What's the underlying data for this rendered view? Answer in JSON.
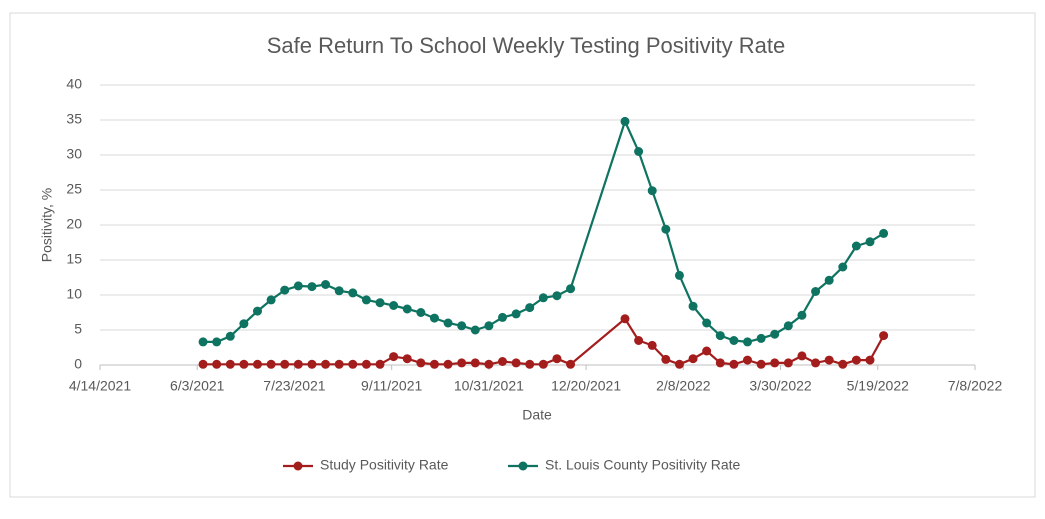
{
  "chart_data": {
    "type": "line",
    "title": "Safe Return To School Weekly Testing Positivity Rate",
    "xlabel": "Date",
    "ylabel": "Positivity, %",
    "x": [
      "6/6/2021",
      "6/13/2021",
      "6/20/2021",
      "6/27/2021",
      "7/4/2021",
      "7/11/2021",
      "7/18/2021",
      "7/25/2021",
      "8/1/2021",
      "8/8/2021",
      "8/15/2021",
      "8/22/2021",
      "8/29/2021",
      "9/5/2021",
      "9/12/2021",
      "9/19/2021",
      "9/26/2021",
      "10/3/2021",
      "10/10/2021",
      "10/17/2021",
      "10/24/2021",
      "10/31/2021",
      "11/7/2021",
      "11/14/2021",
      "11/21/2021",
      "11/28/2021",
      "12/5/2021",
      "12/12/2021",
      "1/9/2022",
      "1/16/2022",
      "1/23/2022",
      "1/30/2022",
      "2/6/2022",
      "2/13/2022",
      "2/20/2022",
      "2/27/2022",
      "3/6/2022",
      "3/13/2022",
      "3/20/2022",
      "3/27/2022",
      "4/3/2022",
      "4/10/2022",
      "4/17/2022",
      "4/24/2022",
      "5/1/2022",
      "5/8/2022",
      "5/15/2022",
      "5/22/2022"
    ],
    "series": [
      {
        "name": "Study Positivity Rate",
        "color": "#a31d1d",
        "values": [
          0.1,
          0.1,
          0.1,
          0.1,
          0.1,
          0.1,
          0.1,
          0.1,
          0.1,
          0.1,
          0.1,
          0.1,
          0.1,
          0.1,
          1.2,
          0.9,
          0.3,
          0.1,
          0.1,
          0.3,
          0.3,
          0.1,
          0.5,
          0.3,
          0.1,
          0.1,
          0.9,
          0.1,
          6.6,
          3.5,
          2.8,
          0.8,
          0.1,
          0.9,
          2.0,
          0.3,
          0.1,
          0.7,
          0.1,
          0.3,
          0.3,
          1.3,
          0.3,
          0.7,
          0.1,
          0.7,
          0.7,
          4.2
        ]
      },
      {
        "name": "St. Louis County Positivity Rate",
        "color": "#0e7360",
        "values": [
          3.3,
          3.3,
          4.1,
          5.9,
          7.7,
          9.3,
          10.7,
          11.3,
          11.2,
          11.5,
          10.6,
          10.3,
          9.3,
          8.9,
          8.5,
          8.0,
          7.5,
          6.7,
          6.0,
          5.6,
          5.0,
          5.6,
          6.8,
          7.3,
          8.2,
          9.6,
          9.9,
          10.9,
          34.8,
          30.5,
          24.9,
          19.4,
          12.8,
          8.4,
          6.0,
          4.2,
          3.5,
          3.3,
          3.8,
          4.4,
          5.6,
          7.1,
          10.5,
          12.1,
          14.0,
          17.0,
          17.6,
          18.8
        ]
      }
    ],
    "xlim": [
      "4/14/2021",
      "7/8/2022"
    ],
    "xticks": [
      "4/14/2021",
      "6/3/2021",
      "7/23/2021",
      "9/11/2021",
      "10/31/2021",
      "12/20/2021",
      "2/8/2022",
      "3/30/2022",
      "5/19/2022",
      "7/8/2022"
    ],
    "ylim": [
      0,
      40
    ],
    "yticks": [
      0,
      5,
      10,
      15,
      20,
      25,
      30,
      35,
      40
    ],
    "grid": true,
    "legend": "bottom"
  }
}
